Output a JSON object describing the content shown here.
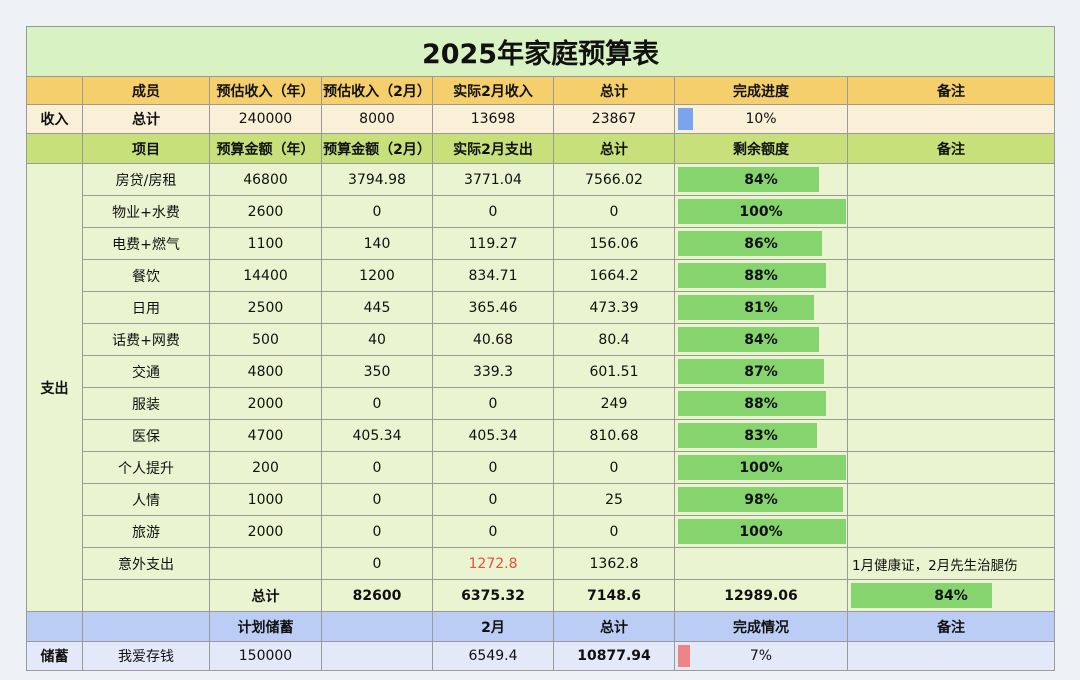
{
  "title": "2025年家庭预算表",
  "income": {
    "headers": [
      "",
      "成员",
      "预估收入（年）",
      "预估收入（2月）",
      "实际2月收入",
      "总计",
      "完成进度",
      "备注"
    ],
    "row": {
      "section": "收入",
      "member": "总计",
      "annual": "240000",
      "month": "8000",
      "actual": "13698",
      "total": "23867",
      "progress": 10,
      "progress_label": "10%",
      "note": ""
    }
  },
  "expense": {
    "section": "支出",
    "headers": [
      "",
      "项目",
      "预算金额（年）",
      "预算金额（2月）",
      "实际2月支出",
      "总计",
      "剩余额度",
      "备注"
    ],
    "rows": [
      {
        "item": "房贷/房租",
        "annual": "46800",
        "month": "3794.98",
        "actual": "3771.04",
        "total": "7566.02",
        "remain": 84,
        "remain_label": "84%",
        "note": ""
      },
      {
        "item": "物业+水费",
        "annual": "2600",
        "month": "0",
        "actual": "0",
        "total": "0",
        "remain": 100,
        "remain_label": "100%",
        "note": ""
      },
      {
        "item": "电费+燃气",
        "annual": "1100",
        "month": "140",
        "actual": "119.27",
        "total": "156.06",
        "remain": 86,
        "remain_label": "86%",
        "note": ""
      },
      {
        "item": "餐饮",
        "annual": "14400",
        "month": "1200",
        "actual": "834.71",
        "total": "1664.2",
        "remain": 88,
        "remain_label": "88%",
        "note": ""
      },
      {
        "item": "日用",
        "annual": "2500",
        "month": "445",
        "actual": "365.46",
        "total": "473.39",
        "remain": 81,
        "remain_label": "81%",
        "note": ""
      },
      {
        "item": "话费+网费",
        "annual": "500",
        "month": "40",
        "actual": "40.68",
        "total": "80.4",
        "remain": 84,
        "remain_label": "84%",
        "note": ""
      },
      {
        "item": "交通",
        "annual": "4800",
        "month": "350",
        "actual": "339.3",
        "total": "601.51",
        "remain": 87,
        "remain_label": "87%",
        "note": ""
      },
      {
        "item": "服装",
        "annual": "2000",
        "month": "0",
        "actual": "0",
        "total": "249",
        "remain": 88,
        "remain_label": "88%",
        "note": ""
      },
      {
        "item": "医保",
        "annual": "4700",
        "month": "405.34",
        "actual": "405.34",
        "total": "810.68",
        "remain": 83,
        "remain_label": "83%",
        "note": ""
      },
      {
        "item": "个人提升",
        "annual": "200",
        "month": "0",
        "actual": "0",
        "total": "0",
        "remain": 100,
        "remain_label": "100%",
        "note": ""
      },
      {
        "item": "人情",
        "annual": "1000",
        "month": "0",
        "actual": "0",
        "total": "25",
        "remain": 98,
        "remain_label": "98%",
        "note": ""
      },
      {
        "item": "旅游",
        "annual": "2000",
        "month": "0",
        "actual": "0",
        "total": "0",
        "remain": 100,
        "remain_label": "100%",
        "note": ""
      },
      {
        "item": "意外支出",
        "annual": "",
        "month": "0",
        "actual": "1272.8",
        "actual_color": "#e0513e",
        "total": "1362.8",
        "remain": null,
        "remain_label": "",
        "note": "1月健康证，2月先生治腿伤"
      }
    ],
    "total": {
      "item": "总计",
      "annual": "82600",
      "month": "6375.32",
      "actual": "7148.6",
      "total": "12989.06",
      "remain": 84,
      "remain_label": "84%",
      "note": ""
    }
  },
  "savings": {
    "headers": [
      "",
      "",
      "计划储蓄",
      "",
      "2月",
      "总计",
      "完成情况",
      "备注"
    ],
    "row": {
      "section": "储蓄",
      "item": "我爱存钱",
      "plan": "150000",
      "blank": "",
      "month": "6549.4",
      "total": "10877.94",
      "progress": 7,
      "progress_label": "7%",
      "note": ""
    }
  },
  "colors": {
    "title_bg": "#d8f2c3",
    "income_header_bg": "#f5cf6c",
    "expense_header_bg": "#c8e07a",
    "savings_header_bg": "#bccdf5",
    "bar_green": "#86d46e",
    "bar_blue": "#7aa4f0",
    "bar_red": "#ee8585",
    "warning_text": "#e0513e"
  }
}
